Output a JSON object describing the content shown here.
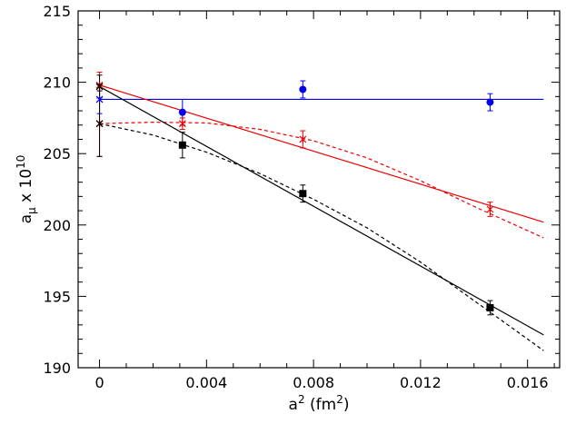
{
  "chart_data": {
    "type": "scatter",
    "title": "",
    "xlabel": {
      "base": "a",
      "sup": "2",
      "rest": " (fm",
      "sup2": "2",
      "end": ")"
    },
    "ylabel": {
      "base": "a",
      "sub": "μ",
      "mid": " x 10",
      "sup": "10"
    },
    "xlim": [
      -0.0008,
      0.0172
    ],
    "ylim": [
      190,
      215
    ],
    "xticks": [
      0,
      0.004,
      0.008,
      0.012,
      0.016
    ],
    "xtick_labels": [
      "0",
      "0.004",
      "0.008",
      "0.012",
      "0.016"
    ],
    "yticks": [
      190,
      195,
      200,
      205,
      210,
      215
    ],
    "ytick_labels": [
      "190",
      "195",
      "200",
      "205",
      "210",
      "215"
    ],
    "grid": false,
    "series": [
      {
        "marker": "circle",
        "color": "#0000ee",
        "points": [
          {
            "x": 0.0031,
            "y": 207.9,
            "err": 0.9
          },
          {
            "x": 0.0076,
            "y": 209.5,
            "err": 0.6
          },
          {
            "x": 0.0146,
            "y": 208.6,
            "err": 0.6
          }
        ],
        "fits": [
          {
            "style": "solid",
            "points": [
              [
                0,
                208.8
              ],
              [
                0.0166,
                208.8
              ]
            ]
          }
        ],
        "extrapolated": [
          {
            "x": 0,
            "y": 208.8,
            "err": 1.0
          }
        ]
      },
      {
        "marker": "cross",
        "color": "#ee0000",
        "points": [
          {
            "x": 0.0031,
            "y": 207.1,
            "err": 0.4
          },
          {
            "x": 0.0076,
            "y": 206.0,
            "err": 0.6
          },
          {
            "x": 0.0146,
            "y": 201.1,
            "err": 0.5
          }
        ],
        "fits": [
          {
            "style": "solid",
            "points": [
              [
                0,
                209.8
              ],
              [
                0.0166,
                200.2
              ]
            ]
          },
          {
            "style": "dashed",
            "points": [
              [
                0,
                207.1
              ],
              [
                0.002,
                207.2
              ],
              [
                0.004,
                207.15
              ],
              [
                0.006,
                206.7
              ],
              [
                0.008,
                205.9
              ],
              [
                0.01,
                204.7
              ],
              [
                0.012,
                203.1
              ],
              [
                0.014,
                201.3
              ],
              [
                0.0166,
                199.1
              ]
            ]
          }
        ],
        "extrapolated": [
          {
            "x": 0,
            "y": 209.8,
            "err": 0.9
          },
          {
            "x": 0,
            "y": 207.1,
            "err": 2.3
          }
        ]
      },
      {
        "marker": "square",
        "color": "#000000",
        "points": [
          {
            "x": 0.0031,
            "y": 205.6,
            "err": 0.9
          },
          {
            "x": 0.0076,
            "y": 202.2,
            "err": 0.6
          },
          {
            "x": 0.0146,
            "y": 194.2,
            "err": 0.5
          }
        ],
        "fits": [
          {
            "style": "solid",
            "points": [
              [
                0,
                209.7
              ],
              [
                0.0166,
                192.3
              ]
            ]
          },
          {
            "style": "dashed",
            "points": [
              [
                0,
                207.1
              ],
              [
                0.002,
                206.3
              ],
              [
                0.004,
                205.1
              ],
              [
                0.006,
                203.6
              ],
              [
                0.008,
                201.8
              ],
              [
                0.01,
                199.8
              ],
              [
                0.012,
                197.4
              ],
              [
                0.014,
                194.7
              ],
              [
                0.0166,
                191.2
              ]
            ]
          }
        ],
        "extrapolated": [
          {
            "x": 0,
            "y": 209.7,
            "err": 0.8
          },
          {
            "x": 0,
            "y": 207.1,
            "err": 2.3
          }
        ]
      }
    ]
  }
}
